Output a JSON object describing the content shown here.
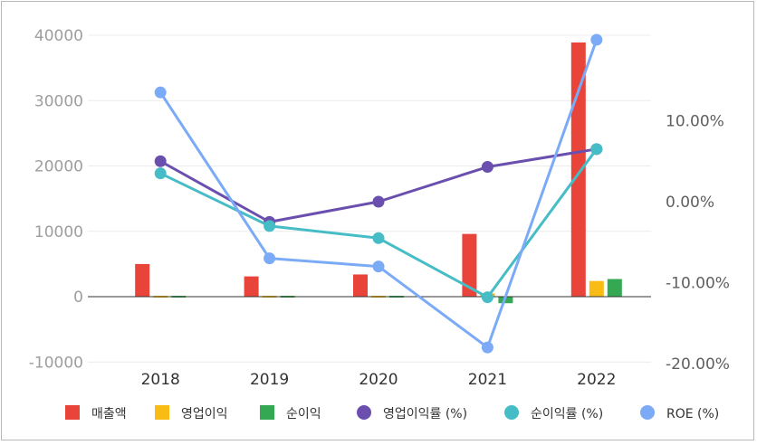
{
  "chart_data": {
    "type": "bar",
    "categories": [
      "2018",
      "2019",
      "2020",
      "2021",
      "2022"
    ],
    "bar_series": [
      {
        "name": "매출액",
        "color": "#e8443a",
        "values": [
          5000,
          3100,
          3400,
          9600,
          38900
        ]
      },
      {
        "name": "영업이익",
        "color": "#f9bc15",
        "values": [
          200,
          -100,
          0,
          500,
          2400
        ]
      },
      {
        "name": "순이익",
        "color": "#34a853",
        "values": [
          250,
          -50,
          -100,
          -1000,
          2700
        ]
      }
    ],
    "line_series": [
      {
        "name": "영업이익률 (%)",
        "color": "#6a4fae",
        "values": [
          5.0,
          -2.5,
          0.0,
          4.3,
          6.5
        ]
      },
      {
        "name": "순이익률 (%)",
        "color": "#46bdc6",
        "values": [
          3.5,
          -3.0,
          -4.5,
          -11.8,
          6.5
        ]
      },
      {
        "name": "ROE (%)",
        "color": "#7baaf7",
        "values": [
          13.5,
          -7.0,
          -8.0,
          -18.0,
          20.0
        ]
      }
    ],
    "y_left": {
      "lim": [
        -10000,
        40000
      ],
      "ticks": [
        "40000",
        "30000",
        "20000",
        "10000",
        "0",
        "-10000"
      ],
      "tick_values": [
        40000,
        30000,
        20000,
        10000,
        0,
        -10000
      ]
    },
    "y_right": {
      "lim": [
        -20,
        20
      ],
      "ticks": [
        "10.00%",
        "0.00%",
        "-10.00%",
        "-20.00%"
      ],
      "tick_values": [
        10,
        0,
        -10,
        -20
      ]
    },
    "grid": true,
    "legend_position": "bottom"
  }
}
